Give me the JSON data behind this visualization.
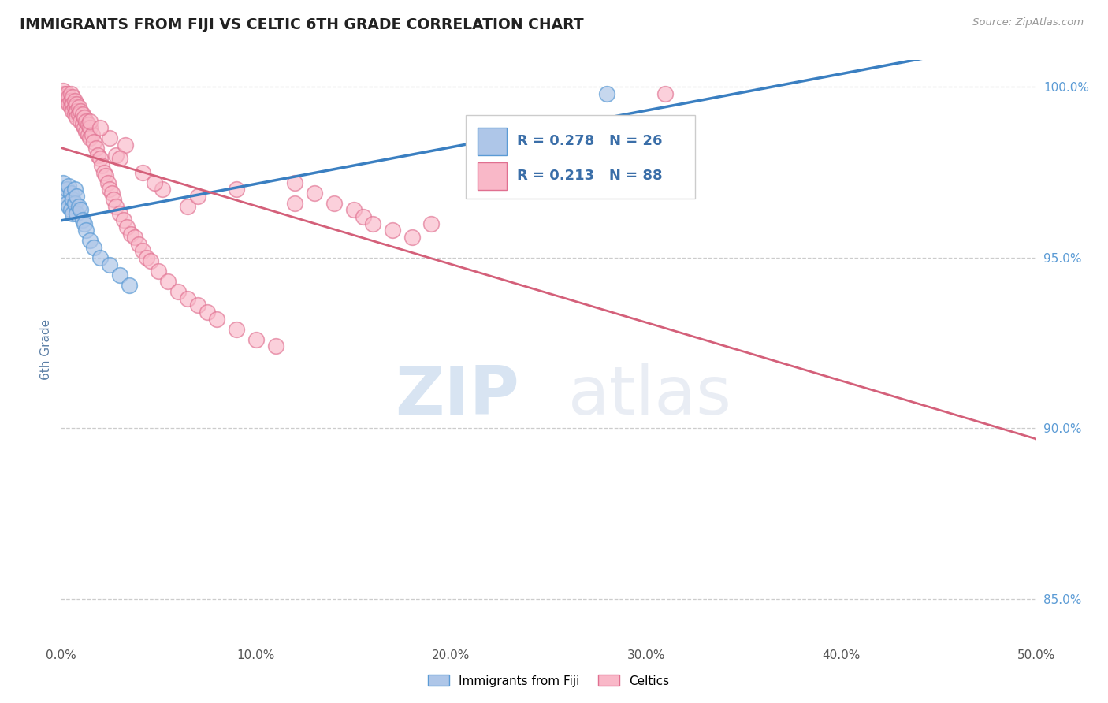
{
  "title": "IMMIGRANTS FROM FIJI VS CELTIC 6TH GRADE CORRELATION CHART",
  "source_text": "Source: ZipAtlas.com",
  "ylabel": "6th Grade",
  "xlim": [
    0.0,
    0.5
  ],
  "ylim": [
    0.838,
    1.008
  ],
  "xticks": [
    0.0,
    0.1,
    0.2,
    0.3,
    0.4,
    0.5
  ],
  "xticklabels": [
    "0.0%",
    "10.0%",
    "20.0%",
    "30.0%",
    "40.0%",
    "50.0%"
  ],
  "yticks": [
    0.85,
    0.9,
    0.95,
    1.0
  ],
  "yticklabels": [
    "85.0%",
    "90.0%",
    "95.0%",
    "100.0%"
  ],
  "blue_fill": "#aec6e8",
  "blue_edge": "#5b9bd5",
  "pink_fill": "#f9b8c8",
  "pink_edge": "#e07090",
  "blue_line": "#3a7fc1",
  "pink_line": "#d4607a",
  "legend_text_color": "#3a6ea8",
  "watermark_zip": "ZIP",
  "watermark_atlas": "atlas",
  "R_fiji": 0.278,
  "N_fiji": 26,
  "R_celtic": 0.213,
  "N_celtic": 88,
  "fiji_x": [
    0.001,
    0.002,
    0.003,
    0.003,
    0.004,
    0.004,
    0.005,
    0.005,
    0.006,
    0.006,
    0.007,
    0.007,
    0.008,
    0.008,
    0.009,
    0.01,
    0.011,
    0.012,
    0.013,
    0.015,
    0.017,
    0.02,
    0.025,
    0.03,
    0.035,
    0.28
  ],
  "fiji_y": [
    0.972,
    0.968,
    0.97,
    0.966,
    0.971,
    0.965,
    0.969,
    0.964,
    0.967,
    0.963,
    0.97,
    0.966,
    0.968,
    0.963,
    0.965,
    0.964,
    0.961,
    0.96,
    0.958,
    0.955,
    0.953,
    0.95,
    0.948,
    0.945,
    0.942,
    0.998
  ],
  "celtic_x": [
    0.001,
    0.002,
    0.002,
    0.003,
    0.003,
    0.004,
    0.004,
    0.005,
    0.005,
    0.005,
    0.006,
    0.006,
    0.006,
    0.007,
    0.007,
    0.007,
    0.008,
    0.008,
    0.008,
    0.009,
    0.009,
    0.01,
    0.01,
    0.011,
    0.011,
    0.012,
    0.012,
    0.013,
    0.013,
    0.014,
    0.014,
    0.015,
    0.015,
    0.016,
    0.017,
    0.018,
    0.019,
    0.02,
    0.021,
    0.022,
    0.023,
    0.024,
    0.025,
    0.026,
    0.027,
    0.028,
    0.03,
    0.032,
    0.034,
    0.036,
    0.038,
    0.04,
    0.042,
    0.044,
    0.046,
    0.05,
    0.055,
    0.06,
    0.065,
    0.07,
    0.075,
    0.08,
    0.09,
    0.1,
    0.11,
    0.12,
    0.13,
    0.14,
    0.15,
    0.155,
    0.16,
    0.17,
    0.18,
    0.015,
    0.028,
    0.052,
    0.065,
    0.025,
    0.042,
    0.31,
    0.033,
    0.048,
    0.07,
    0.02,
    0.03,
    0.09,
    0.12,
    0.19
  ],
  "celtic_y": [
    0.999,
    0.998,
    0.997,
    0.998,
    0.996,
    0.997,
    0.995,
    0.998,
    0.996,
    0.994,
    0.997,
    0.995,
    0.993,
    0.996,
    0.994,
    0.992,
    0.995,
    0.993,
    0.991,
    0.994,
    0.992,
    0.993,
    0.99,
    0.992,
    0.989,
    0.991,
    0.988,
    0.99,
    0.987,
    0.989,
    0.986,
    0.988,
    0.985,
    0.986,
    0.984,
    0.982,
    0.98,
    0.979,
    0.977,
    0.975,
    0.974,
    0.972,
    0.97,
    0.969,
    0.967,
    0.965,
    0.963,
    0.961,
    0.959,
    0.957,
    0.956,
    0.954,
    0.952,
    0.95,
    0.949,
    0.946,
    0.943,
    0.94,
    0.938,
    0.936,
    0.934,
    0.932,
    0.929,
    0.926,
    0.924,
    0.972,
    0.969,
    0.966,
    0.964,
    0.962,
    0.96,
    0.958,
    0.956,
    0.99,
    0.98,
    0.97,
    0.965,
    0.985,
    0.975,
    0.998,
    0.983,
    0.972,
    0.968,
    0.988,
    0.979,
    0.97,
    0.966,
    0.96
  ]
}
